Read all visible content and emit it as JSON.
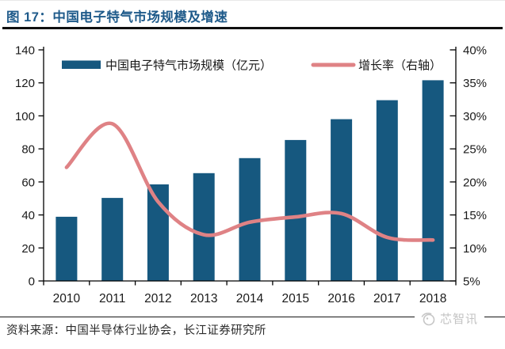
{
  "figure": {
    "title": "图 17：中国电子特气市场规模及增速"
  },
  "chart_data": {
    "type": "bar+line",
    "title": "中国电子特气市场规模及增速",
    "categories": [
      "2010",
      "2011",
      "2012",
      "2013",
      "2014",
      "2015",
      "2016",
      "2017",
      "2018"
    ],
    "series": [
      {
        "name": "中国电子特气市场规模（亿元）",
        "type": "bar",
        "axis": "left",
        "color": "#16587F",
        "values": [
          38.9,
          50.3,
          58.5,
          65.3,
          74.4,
          85.4,
          98.0,
          109.5,
          121.6
        ]
      },
      {
        "name": "增长率（右轴）",
        "type": "line",
        "axis": "right",
        "color": "#DF8285",
        "values": [
          22.2,
          28.8,
          17.0,
          12.0,
          13.9,
          14.7,
          15.2,
          11.6,
          11.2
        ]
      }
    ],
    "left_axis": {
      "min": 0,
      "max": 140,
      "tick_step": 20,
      "tick_labels": [
        "0",
        "20",
        "40",
        "60",
        "80",
        "100",
        "120",
        "140"
      ]
    },
    "right_axis": {
      "min": 5,
      "max": 40,
      "tick_step": 5,
      "tick_labels": [
        "5%",
        "10%",
        "15%",
        "20%",
        "25%",
        "30%",
        "35%",
        "40%"
      ]
    },
    "legend_position": "top",
    "grid": false,
    "axis_color": "#000000",
    "label_color": "#1a1a1a"
  },
  "source": {
    "label": "资料来源：中国半导体行业协会，长江证券研究所"
  },
  "watermark": {
    "icon": "xinzhixun-logo-icon",
    "text": "芯智讯"
  }
}
